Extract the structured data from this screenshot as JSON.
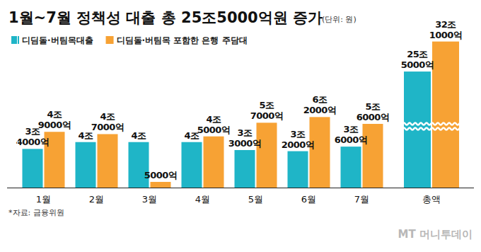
{
  "chart_data": [
    {
      "type": "bar",
      "title": "1월~7월 정책성 대출 총 25조5000억원 증가",
      "subtitle": "(단위: 원)",
      "annotations": [
        "*자료: 금융위원",
        "MT 머니투데이"
      ],
      "categories": [
        "1월",
        "2월",
        "3월",
        "4월",
        "5월",
        "6월",
        "7월"
      ],
      "series": [
        {
          "name": "디딤돌·버팀목대출",
          "color": "#1fb5c7",
          "values": [
            3400000000000,
            4000000000000,
            4000000000000,
            4000000000000,
            3300000000000,
            3200000000000,
            3600000000000
          ],
          "value_labels": [
            "3조 4000억",
            "4조",
            "4조",
            "4조",
            "3조 3000억",
            "3조 2000억",
            "3조 6000억"
          ]
        },
        {
          "name": "디딤돌·버팀목 포함한 은행 주담대",
          "color": "#f7a234",
          "values": [
            4900000000000,
            4700000000000,
            500000000000,
            4500000000000,
            5700000000000,
            6200000000000,
            5600000000000
          ],
          "value_labels": [
            "4조 9000억",
            "4조 7000억",
            "5000억",
            "4조 5000억",
            "5조 7000억",
            "6조 2000억",
            "5조 6000억"
          ]
        }
      ],
      "ylim": [
        0,
        14000000000000
      ],
      "data_labels": true,
      "tick_labels": "x",
      "grid": false,
      "legend": "top-left"
    },
    {
      "type": "bar",
      "categories": [
        "총액"
      ],
      "series": [
        {
          "color": "#1fb5c7",
          "values": [
            25500000000000
          ],
          "value_labels": [
            "25조 5000억"
          ]
        },
        {
          "color": "#f7a234",
          "values": [
            32100000000000
          ],
          "value_labels": [
            "32조 1000억"
          ]
        }
      ],
      "ylim": [
        0,
        35000000000000
      ],
      "data_labels": true,
      "tick_labels": "x",
      "grid": false
    }
  ]
}
